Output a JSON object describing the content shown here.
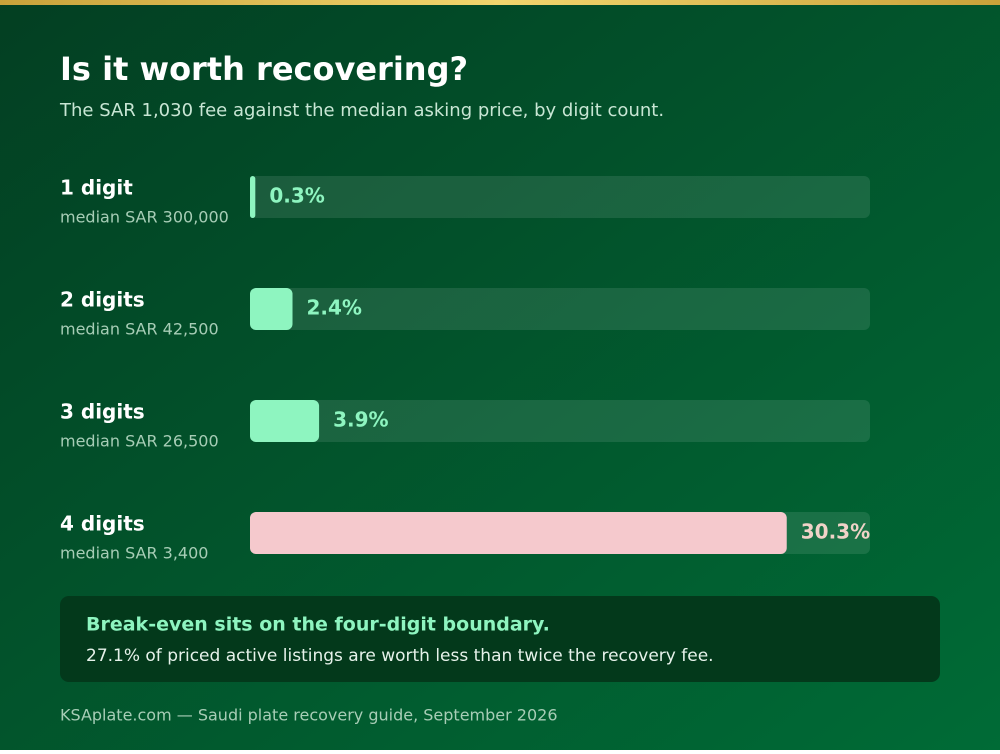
{
  "chart_data": {
    "type": "hbar",
    "title": "Is it worth recovering?",
    "subtitle": "The SAR 1,030 fee against the median asking price, by digit count.",
    "categories": [
      "1 digit",
      "2 digits",
      "3 digits",
      "4 digits"
    ],
    "sublabels": [
      "median SAR 300,000",
      "median SAR 42,500",
      "median SAR 26,500",
      "median SAR 3,400"
    ],
    "values": [
      0.3,
      2.4,
      3.9,
      30.3
    ],
    "value_labels": [
      "0.3%",
      "2.4%",
      "3.9%",
      "30.3%"
    ],
    "colors": [
      "#8ef5c0",
      "#8ef5c0",
      "#8ef5c0",
      "#f5c9cd"
    ],
    "label_colors": [
      "#8ef5c0",
      "#8ef5c0",
      "#8ef5c0",
      "#f0d3c8"
    ],
    "xlim": [
      0,
      35
    ],
    "note": {
      "title": "Break-even sits on the four-digit boundary.",
      "text": "27.1% of priced active listings are worth less than twice the recovery fee."
    },
    "footer": "KSAplate.com — Saudi plate recovery guide, September 2026"
  }
}
